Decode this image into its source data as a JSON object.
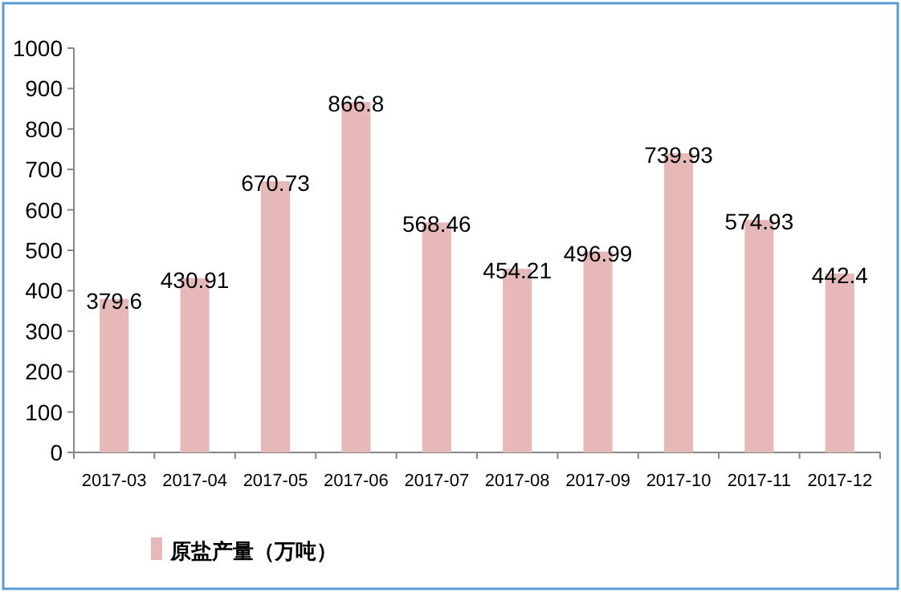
{
  "chart_data": {
    "type": "bar",
    "categories": [
      "2017-03",
      "2017-04",
      "2017-05",
      "2017-06",
      "2017-07",
      "2017-08",
      "2017-09",
      "2017-10",
      "2017-11",
      "2017-12"
    ],
    "series": [
      {
        "name": "原盐产量（万吨）",
        "color": "#e6b9b8",
        "values": [
          379.6,
          430.91,
          670.73,
          866.8,
          568.46,
          454.21,
          496.99,
          739.93,
          574.93,
          442.4
        ]
      }
    ],
    "ylim": [
      0,
      1000
    ],
    "yticks": [
      0,
      100,
      200,
      300,
      400,
      500,
      600,
      700,
      800,
      900,
      1000
    ],
    "data_labels": true,
    "legend": "bottom"
  }
}
